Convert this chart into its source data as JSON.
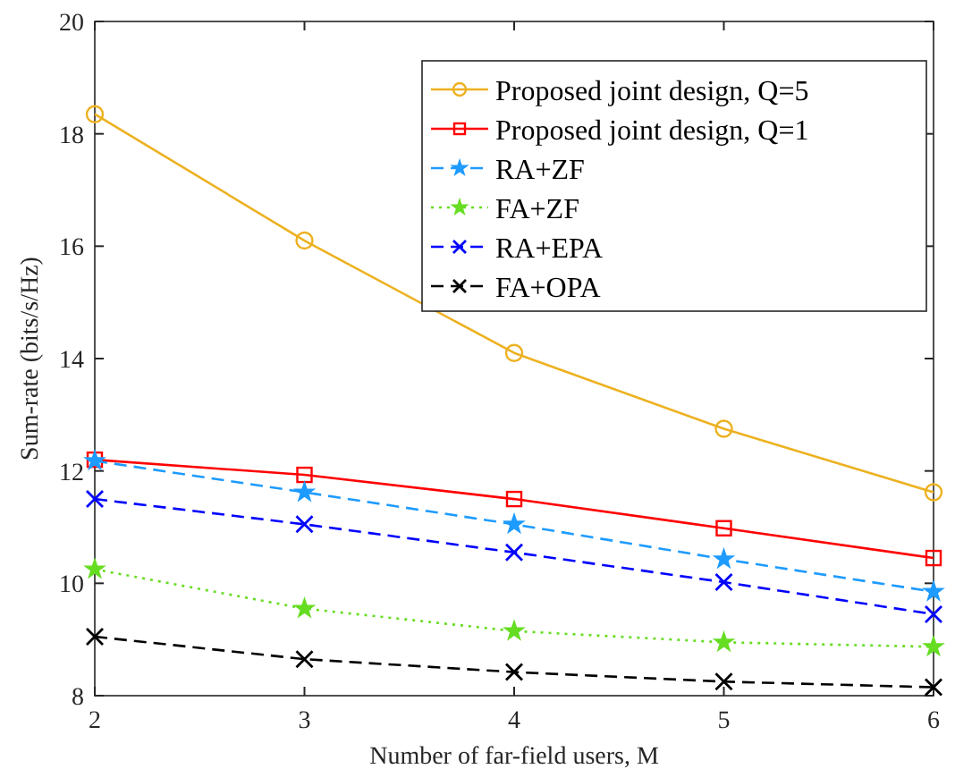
{
  "chart_data": {
    "type": "line",
    "xlabel": "Number of far-field users, M",
    "ylabel": "Sum-rate (bits/s/Hz)",
    "x": [
      2,
      3,
      4,
      5,
      6
    ],
    "xlim": [
      2,
      6
    ],
    "xticks": [
      2,
      3,
      4,
      5,
      6
    ],
    "ylim": [
      8,
      20
    ],
    "yticks": [
      8,
      10,
      12,
      14,
      16,
      18,
      20
    ],
    "grid": false,
    "legend": "top right",
    "series": [
      {
        "name": "Proposed joint design, Q=5",
        "color": "#edb120",
        "marker": "circle",
        "line_style": "solid",
        "values": [
          18.35,
          16.1,
          14.1,
          12.75,
          11.62
        ]
      },
      {
        "name": "Proposed joint design, Q=1",
        "color": "#ff0000",
        "marker": "square",
        "line_style": "solid",
        "values": [
          12.2,
          11.93,
          11.5,
          10.98,
          10.45
        ]
      },
      {
        "name": "RA+ZF",
        "color": "#1e9bff",
        "marker": "star",
        "line_style": "dashed",
        "values": [
          12.18,
          11.62,
          11.05,
          10.43,
          9.85
        ]
      },
      {
        "name": "FA+ZF",
        "color": "#66dd22",
        "marker": "star",
        "line_style": "dotted",
        "values": [
          10.25,
          9.55,
          9.15,
          8.95,
          8.87
        ]
      },
      {
        "name": "RA+EPA",
        "color": "#0000ff",
        "marker": "cross",
        "line_style": "dashed",
        "values": [
          11.5,
          11.05,
          10.55,
          10.02,
          9.45
        ]
      },
      {
        "name": "FA+OPA",
        "color": "#000000",
        "marker": "cross",
        "line_style": "dashed",
        "values": [
          9.05,
          8.65,
          8.42,
          8.25,
          8.15
        ]
      }
    ]
  }
}
